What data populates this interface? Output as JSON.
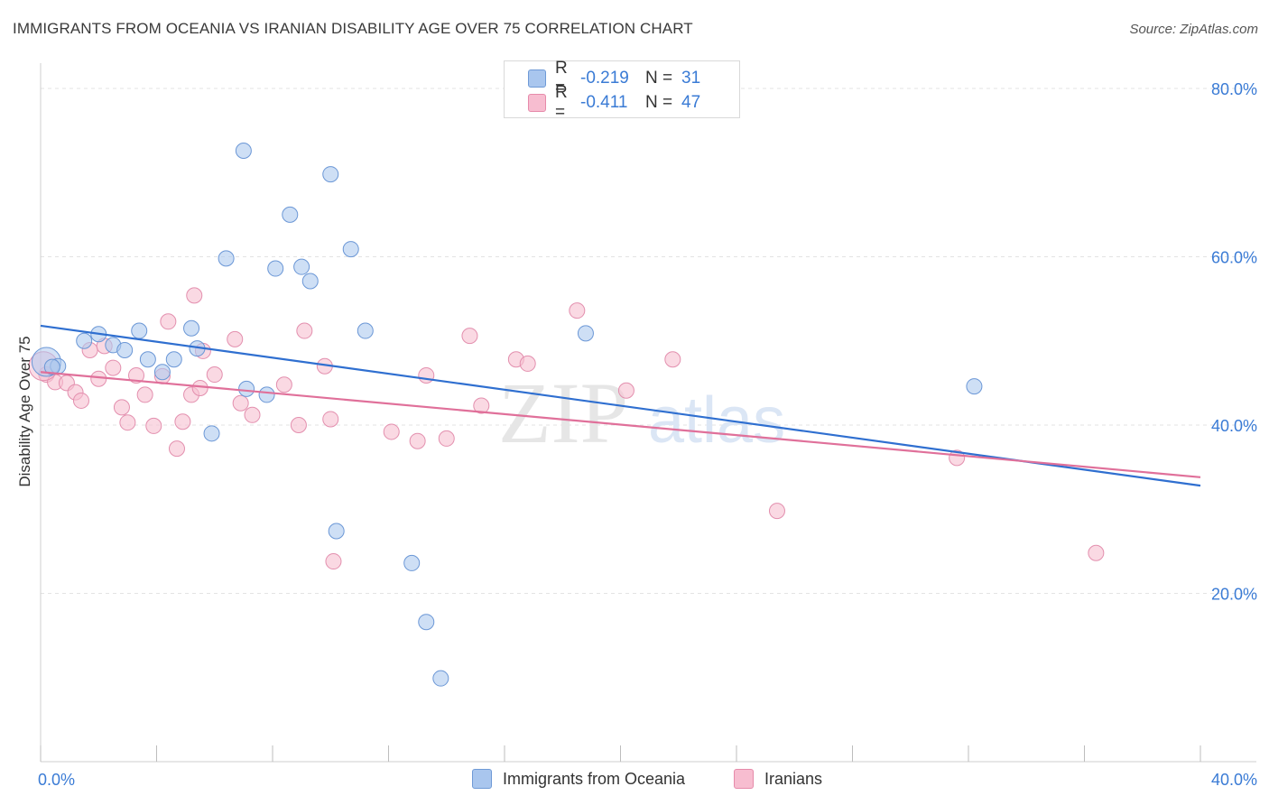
{
  "header": {
    "title": "IMMIGRANTS FROM OCEANIA VS IRANIAN DISABILITY AGE OVER 75 CORRELATION CHART",
    "source": "Source: ZipAtlas.com"
  },
  "watermark": {
    "part1": "ZIP",
    "part2": "atlas"
  },
  "legend": {
    "rows": [
      {
        "r_label": "R =",
        "r_value": "-0.219",
        "n_label": "N =",
        "n_value": "31",
        "color": "#a9c6ee",
        "border": "#6f9ad6"
      },
      {
        "r_label": "R =",
        "r_value": "-0.411",
        "n_label": "N =",
        "n_value": "47",
        "color": "#f7bdd0",
        "border": "#e68aaa"
      }
    ]
  },
  "colors": {
    "series1_fill": "#aec9ef",
    "series1_stroke": "#6b97d6",
    "series1_line": "#2f6fd0",
    "series2_fill": "#f6bfd1",
    "series2_stroke": "#e38fae",
    "series2_line": "#e0709a",
    "tick_label": "#3a7bd5",
    "grid": "#e3e3e3"
  },
  "chart_data": {
    "type": "scatter",
    "title": "IMMIGRANTS FROM OCEANIA VS IRANIAN DISABILITY AGE OVER 75 CORRELATION CHART",
    "xlabel": "",
    "ylabel": "Disability Age Over 75",
    "xlim": [
      0,
      40
    ],
    "ylim": [
      0,
      83
    ],
    "x_tick_labels": [
      {
        "value": 0,
        "label": "0.0%"
      },
      {
        "value": 40,
        "label": "40.0%"
      }
    ],
    "y_tick_labels": [
      {
        "value": 20,
        "label": "20.0%"
      },
      {
        "value": 40,
        "label": "40.0%"
      },
      {
        "value": 60,
        "label": "60.0%"
      },
      {
        "value": 80,
        "label": "80.0%"
      }
    ],
    "grid": true,
    "legend_position": "top-center",
    "series": [
      {
        "name": "Immigrants from Oceania",
        "points": [
          [
            0.2,
            47.5
          ],
          [
            0.6,
            47.0
          ],
          [
            1.5,
            50.0
          ],
          [
            2.0,
            50.8
          ],
          [
            2.5,
            49.5
          ],
          [
            2.9,
            48.9
          ],
          [
            3.4,
            51.2
          ],
          [
            3.7,
            47.8
          ],
          [
            4.2,
            46.3
          ],
          [
            4.6,
            47.8
          ],
          [
            5.2,
            51.5
          ],
          [
            5.4,
            49.1
          ],
          [
            5.9,
            39.0
          ],
          [
            6.4,
            59.8
          ],
          [
            7.0,
            72.6
          ],
          [
            7.1,
            44.3
          ],
          [
            7.8,
            43.6
          ],
          [
            8.1,
            58.6
          ],
          [
            8.6,
            65.0
          ],
          [
            9.0,
            58.8
          ],
          [
            9.3,
            57.1
          ],
          [
            10.0,
            69.8
          ],
          [
            10.2,
            27.4
          ],
          [
            10.7,
            60.9
          ],
          [
            11.2,
            51.2
          ],
          [
            12.8,
            23.6
          ],
          [
            13.3,
            16.6
          ],
          [
            13.8,
            9.9
          ],
          [
            18.8,
            50.9
          ],
          [
            32.2,
            44.6
          ],
          [
            0.4,
            46.9
          ]
        ]
      },
      {
        "name": "Iranians",
        "points": [
          [
            0.2,
            46.0
          ],
          [
            0.5,
            45.1
          ],
          [
            0.9,
            45.0
          ],
          [
            1.2,
            43.9
          ],
          [
            1.4,
            42.9
          ],
          [
            1.7,
            48.9
          ],
          [
            2.0,
            45.5
          ],
          [
            2.2,
            49.4
          ],
          [
            2.5,
            46.8
          ],
          [
            2.8,
            42.1
          ],
          [
            3.0,
            40.3
          ],
          [
            3.3,
            45.9
          ],
          [
            3.6,
            43.6
          ],
          [
            3.9,
            39.9
          ],
          [
            4.2,
            45.8
          ],
          [
            4.4,
            52.3
          ],
          [
            4.7,
            37.2
          ],
          [
            4.9,
            40.4
          ],
          [
            5.2,
            43.6
          ],
          [
            5.3,
            55.4
          ],
          [
            5.5,
            44.4
          ],
          [
            5.6,
            48.8
          ],
          [
            6.0,
            46.0
          ],
          [
            6.7,
            50.2
          ],
          [
            6.9,
            42.6
          ],
          [
            7.3,
            41.2
          ],
          [
            8.4,
            44.8
          ],
          [
            8.9,
            40.0
          ],
          [
            9.1,
            51.2
          ],
          [
            9.8,
            47.0
          ],
          [
            10.0,
            40.7
          ],
          [
            10.1,
            23.8
          ],
          [
            12.1,
            39.2
          ],
          [
            13.0,
            38.1
          ],
          [
            13.3,
            45.9
          ],
          [
            14.0,
            38.4
          ],
          [
            14.8,
            50.6
          ],
          [
            15.2,
            42.3
          ],
          [
            16.4,
            47.8
          ],
          [
            16.8,
            47.3
          ],
          [
            18.5,
            53.6
          ],
          [
            20.2,
            44.1
          ],
          [
            21.8,
            47.8
          ],
          [
            25.4,
            29.8
          ],
          [
            31.6,
            36.1
          ],
          [
            36.4,
            24.8
          ],
          [
            0.1,
            47.0
          ]
        ]
      }
    ],
    "trend_lines": [
      {
        "series": "Immigrants from Oceania",
        "x": [
          0,
          40
        ],
        "y": [
          51.8,
          32.8
        ]
      },
      {
        "series": "Iranians",
        "x": [
          0,
          40
        ],
        "y": [
          46.3,
          33.8
        ]
      }
    ]
  }
}
